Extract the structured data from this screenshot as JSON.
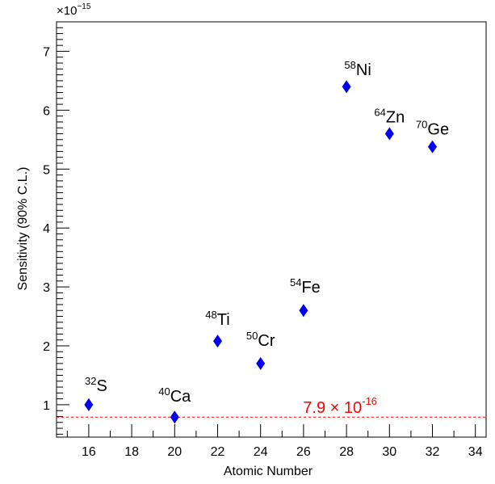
{
  "chart_data": {
    "type": "scatter",
    "title": "",
    "xlabel": "Atomic Number",
    "ylabel": "Sensitivity (90% C.L.)",
    "y_multiplier_label": "×10",
    "y_multiplier_exponent": "−15",
    "xlim": [
      14.5,
      34.5
    ],
    "ylim": [
      0.45,
      7.5
    ],
    "x_ticks": [
      16,
      18,
      20,
      22,
      24,
      26,
      28,
      30,
      32,
      34
    ],
    "y_ticks": [
      1,
      2,
      3,
      4,
      5,
      6,
      7
    ],
    "grid": false,
    "marker": "diamond",
    "marker_color": "#0000ee",
    "points": [
      {
        "x": 16,
        "y": 1.0,
        "mass": "32",
        "symbol": "S"
      },
      {
        "x": 20,
        "y": 0.79,
        "mass": "40",
        "symbol": "Ca"
      },
      {
        "x": 22,
        "y": 2.08,
        "mass": "48",
        "symbol": "Ti"
      },
      {
        "x": 24,
        "y": 1.7,
        "mass": "50",
        "symbol": "Cr"
      },
      {
        "x": 26,
        "y": 2.6,
        "mass": "54",
        "symbol": "Fe"
      },
      {
        "x": 28,
        "y": 6.4,
        "mass": "58",
        "symbol": "Ni"
      },
      {
        "x": 30,
        "y": 5.6,
        "mass": "64",
        "symbol": "Zn"
      },
      {
        "x": 32,
        "y": 5.38,
        "mass": "70",
        "symbol": "Ge"
      }
    ],
    "reference_line": {
      "y": 0.79,
      "label_mantissa": "7.9 × 10",
      "label_exponent": "-16",
      "color": "#ff0000",
      "style": "dashed"
    }
  }
}
